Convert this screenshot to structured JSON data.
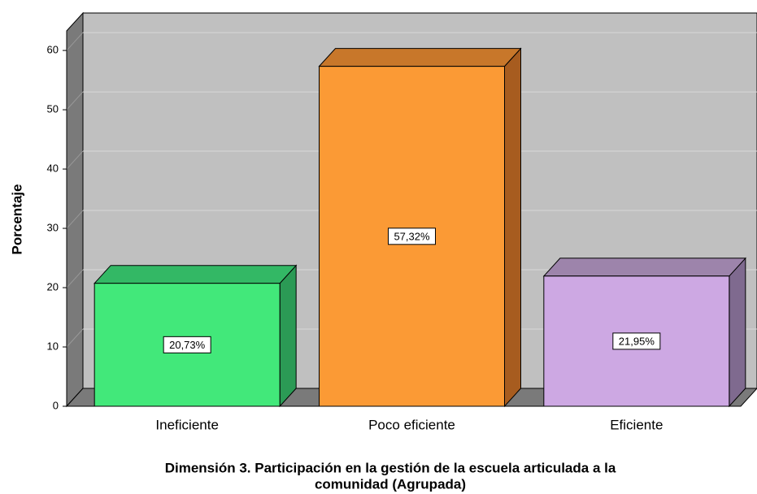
{
  "chart_data": {
    "type": "bar3d",
    "title": [
      "Dimensión 3. Participación en la gestión de la escuela articulada a la",
      "comunidad (Agrupada)"
    ],
    "y_label": "Porcentaje",
    "categories": [
      "Ineficiente",
      "Poco eficiente",
      "Eficiente"
    ],
    "values": [
      20.73,
      57.32,
      21.95
    ],
    "value_labels": [
      "20,73%",
      "57,32%",
      "21,95%"
    ],
    "colors": [
      "#42e87a",
      "#fb9a35",
      "#cda8e3"
    ],
    "side_colors": [
      "#2b9a55",
      "#a75c1f",
      "#7f6a8f"
    ],
    "top_colors": [
      "#33b865",
      "#c8772a",
      "#9d84ab"
    ],
    "ylim": [
      0,
      63.3
    ],
    "yticks": [
      0,
      10,
      20,
      30,
      40,
      50,
      60
    ],
    "grid": true
  }
}
